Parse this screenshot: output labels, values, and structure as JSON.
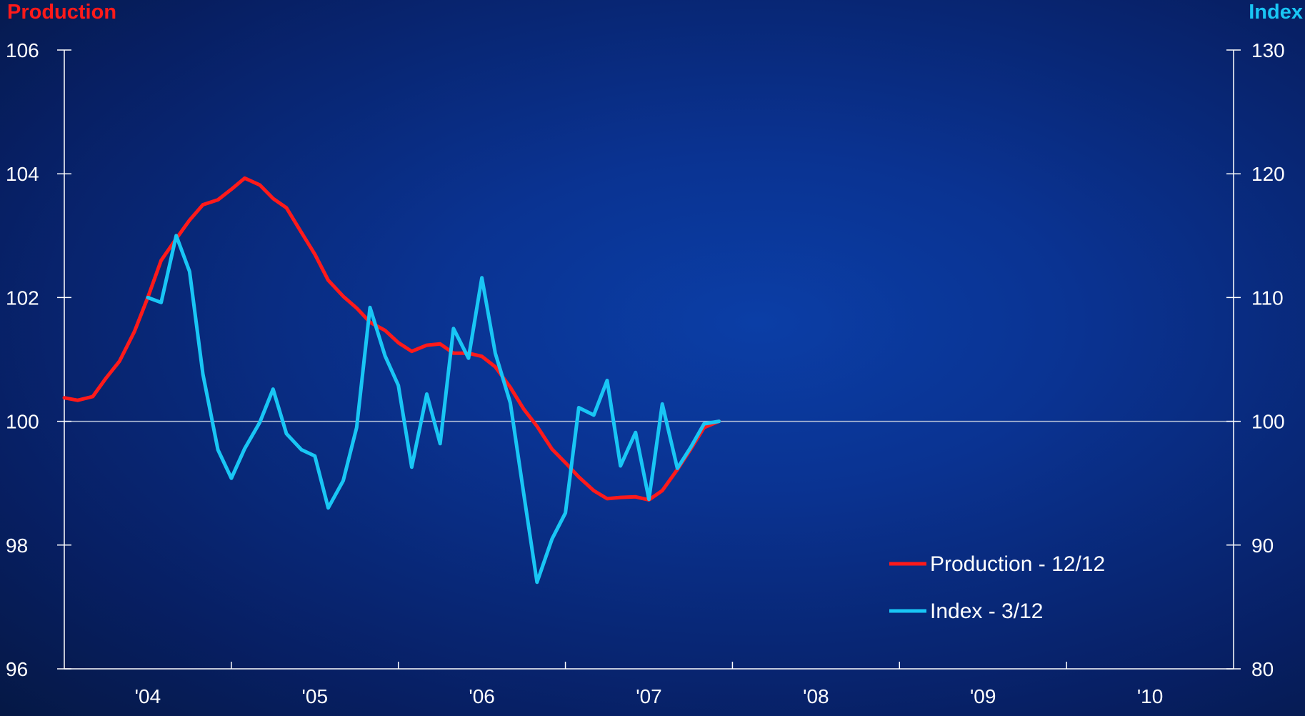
{
  "chart_data": {
    "type": "line",
    "title": "",
    "left_axis": {
      "label": "Production",
      "ylim": [
        96,
        106
      ],
      "ticks": [
        96,
        98,
        100,
        102,
        104,
        106
      ],
      "color": "#ff1a1a"
    },
    "right_axis": {
      "label": "Index",
      "ylim": [
        80,
        130
      ],
      "ticks": [
        80,
        90,
        100,
        110,
        120,
        130
      ],
      "color": "#19c6f5"
    },
    "x_axis": {
      "xlim": [
        2003.5,
        2010.5
      ],
      "tick_labels": [
        "'04",
        "'05",
        "'06",
        "'07",
        "'08",
        "'09",
        "'10"
      ],
      "label_positions": [
        2004,
        2005,
        2006,
        2007,
        2008,
        2009,
        2010
      ]
    },
    "reference_line": {
      "axis": "left",
      "value": 100
    },
    "series": [
      {
        "name": "Production - 12/12",
        "axis": "left",
        "color": "#ff1a1a",
        "x": [
          2003.5,
          2003.58,
          2003.67,
          2003.75,
          2003.83,
          2003.92,
          2004.0,
          2004.08,
          2004.17,
          2004.25,
          2004.33,
          2004.42,
          2004.5,
          2004.58,
          2004.67,
          2004.75,
          2004.83,
          2004.92,
          2005.0,
          2005.08,
          2005.17,
          2005.25,
          2005.33,
          2005.42,
          2005.5,
          2005.58,
          2005.67,
          2005.75,
          2005.83,
          2005.92,
          2006.0,
          2006.08,
          2006.17,
          2006.25,
          2006.33,
          2006.42,
          2006.5,
          2006.58,
          2006.67,
          2006.75,
          2006.83,
          2006.92,
          2007.0,
          2007.08,
          2007.17,
          2007.25,
          2007.33,
          2007.42
        ],
        "values": [
          100.38,
          100.34,
          100.4,
          100.7,
          100.97,
          101.45,
          102.0,
          102.6,
          102.95,
          103.25,
          103.5,
          103.58,
          103.75,
          103.93,
          103.82,
          103.6,
          103.45,
          103.05,
          102.7,
          102.28,
          102.02,
          101.83,
          101.6,
          101.47,
          101.27,
          101.13,
          101.23,
          101.25,
          101.1,
          101.1,
          101.05,
          100.88,
          100.55,
          100.2,
          99.92,
          99.55,
          99.33,
          99.1,
          98.88,
          98.75,
          98.77,
          98.78,
          98.73,
          98.88,
          99.22,
          99.55,
          99.9,
          100.0
        ]
      },
      {
        "name": "Index - 3/12",
        "axis": "right",
        "color": "#19c6f5",
        "x": [
          2004.0,
          2004.08,
          2004.17,
          2004.25,
          2004.33,
          2004.42,
          2004.5,
          2004.58,
          2004.67,
          2004.75,
          2004.83,
          2004.92,
          2005.0,
          2005.08,
          2005.17,
          2005.25,
          2005.33,
          2005.42,
          2005.5,
          2005.58,
          2005.67,
          2005.75,
          2005.83,
          2005.92,
          2006.0,
          2006.08,
          2006.17,
          2006.25,
          2006.33,
          2006.42,
          2006.5,
          2006.58,
          2006.67,
          2006.75,
          2006.83,
          2006.92,
          2007.0,
          2007.08,
          2007.17,
          2007.25,
          2007.33,
          2007.42
        ],
        "values": [
          110.0,
          109.6,
          115.0,
          112.1,
          103.8,
          97.7,
          95.4,
          97.8,
          99.9,
          102.6,
          99.0,
          97.7,
          97.2,
          93.0,
          95.2,
          99.5,
          109.2,
          105.3,
          102.9,
          96.3,
          102.2,
          98.2,
          107.5,
          105.1,
          111.6,
          105.5,
          101.5,
          94.2,
          87.0,
          90.5,
          92.6,
          101.1,
          100.5,
          103.3,
          96.4,
          99.1,
          93.7,
          101.4,
          96.2,
          97.9,
          99.8,
          100.0
        ]
      }
    ],
    "legend": {
      "placement": "bottom-right"
    },
    "grid": false
  }
}
